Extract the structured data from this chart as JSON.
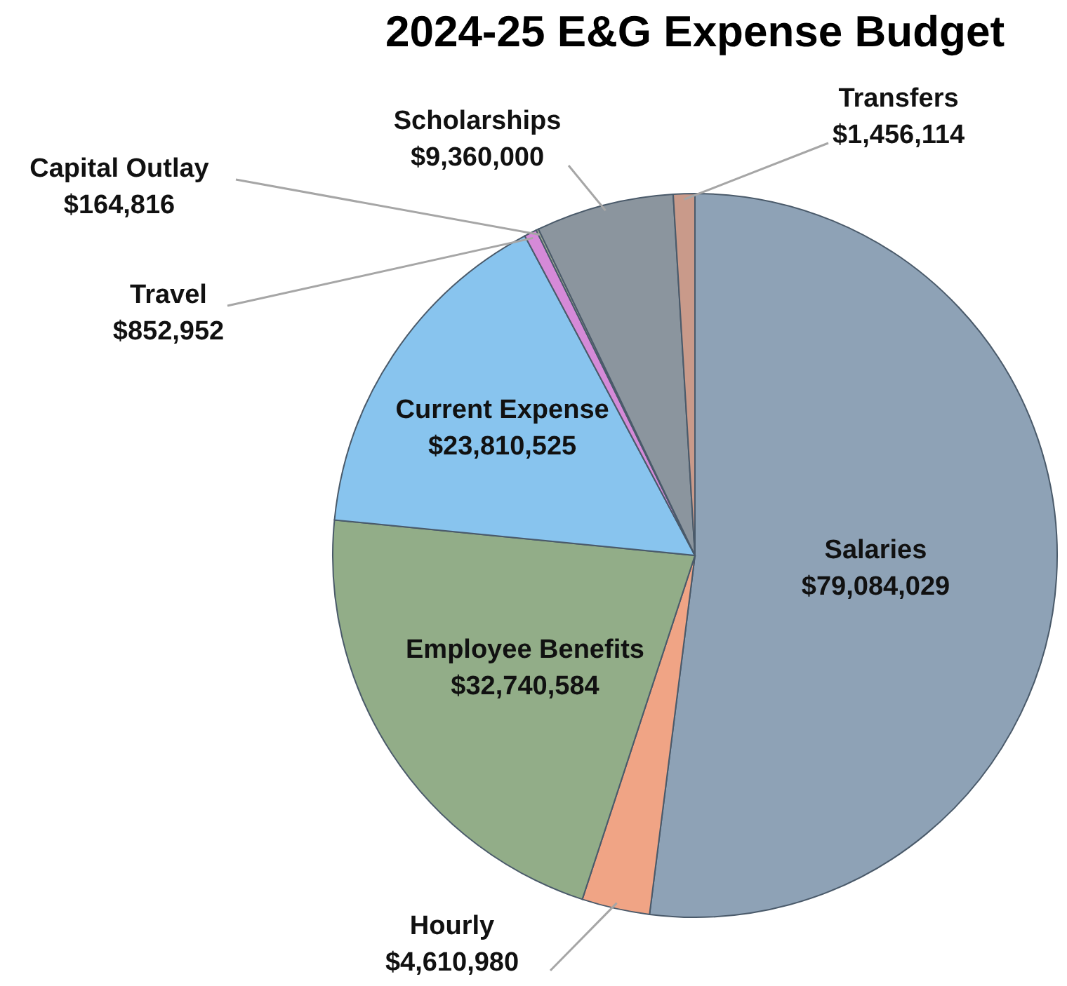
{
  "chart_data": {
    "type": "pie",
    "title": "2024-25 E&G Expense Budget",
    "categories": [
      "Salaries",
      "Hourly",
      "Employee Benefits",
      "Current Expense",
      "Travel",
      "Capital Outlay",
      "Scholarships",
      "Transfers"
    ],
    "values": [
      79084029,
      4610980,
      32740584,
      23810525,
      852952,
      164816,
      9360000,
      1456114
    ],
    "value_labels": [
      "$79,084,029",
      "$4,610,980",
      "$32,740,584",
      "$23,810,525",
      "$852,952",
      "$164,816",
      "$9,360,000",
      "$1,456,114"
    ],
    "colors": [
      "#8ea2b6",
      "#f0a485",
      "#92ad88",
      "#88c4ee",
      "#d58ad8",
      "#a8b39a",
      "#8b959e",
      "#c99a8a"
    ]
  }
}
